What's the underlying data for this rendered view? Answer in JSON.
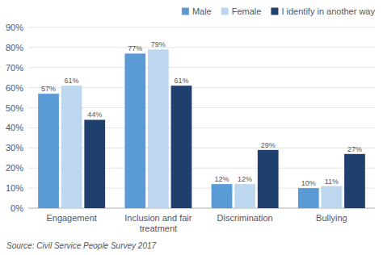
{
  "chart_data": {
    "type": "bar",
    "categories": [
      "Engagement",
      "Inclusion and fair treatment",
      "Discrimination",
      "Bullying"
    ],
    "series": [
      {
        "name": "Male",
        "color": "#5B9BD5",
        "values": [
          57,
          77,
          12,
          10
        ],
        "value_labels": [
          "57%",
          "77%",
          "12%",
          "10%"
        ]
      },
      {
        "name": "Female",
        "color": "#BDD7EE",
        "values": [
          61,
          79,
          12,
          11
        ],
        "value_labels": [
          "61%",
          "79%",
          "12%",
          "11%"
        ]
      },
      {
        "name": "I identify in another way",
        "color": "#1F3F6E",
        "values": [
          44,
          61,
          29,
          27
        ],
        "value_labels": [
          "44%",
          "61%",
          "29%",
          "27%"
        ]
      }
    ],
    "ylim": [
      0,
      90
    ],
    "yticks": [
      {
        "value": 0,
        "label": "0%"
      },
      {
        "value": 10,
        "label": "10%"
      },
      {
        "value": 20,
        "label": "20%"
      },
      {
        "value": 30,
        "label": "30%"
      },
      {
        "value": 40,
        "label": "40%"
      },
      {
        "value": 50,
        "label": "50%"
      },
      {
        "value": 60,
        "label": "60%"
      },
      {
        "value": 70,
        "label": "70%"
      },
      {
        "value": 80,
        "label": "80%"
      },
      {
        "value": 90,
        "label": "90%"
      }
    ],
    "grid": true,
    "legend": "top-right",
    "data_labels": true,
    "annotations": [
      "Source: Civil Service People Survey 2017"
    ]
  }
}
